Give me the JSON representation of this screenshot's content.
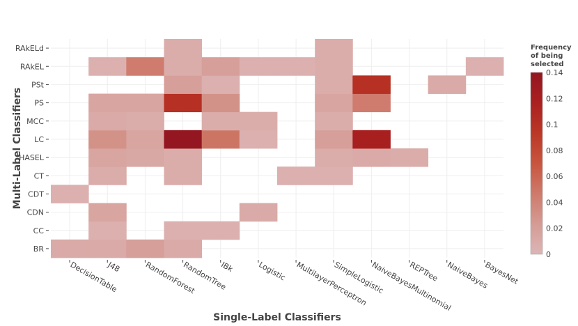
{
  "chart_data": {
    "type": "heatmap",
    "x_categories": [
      "DecisionTable",
      "J48",
      "RandomForest",
      "RandomTree",
      "IBk",
      "Logistic",
      "MultilayerPerceptron",
      "SimpleLogistic",
      "NaiveBayesMultinomial",
      "REPTree",
      "NaiveBayes",
      "BayesNet"
    ],
    "y_categories": [
      "BR",
      "CC",
      "CDN",
      "CDT",
      "CT",
      "HASEL",
      "LC",
      "MCC",
      "PS",
      "PSt",
      "RAkEL",
      "RAkELd"
    ],
    "values": [
      [
        0.01,
        0.01,
        0.02,
        0.01,
        null,
        null,
        null,
        null,
        null,
        null,
        null,
        null
      ],
      [
        null,
        0.005,
        null,
        0.005,
        0.005,
        null,
        null,
        null,
        null,
        null,
        null,
        null
      ],
      [
        null,
        0.015,
        null,
        null,
        null,
        0.01,
        null,
        null,
        null,
        null,
        null,
        null
      ],
      [
        0.005,
        null,
        null,
        null,
        null,
        null,
        null,
        null,
        null,
        null,
        null,
        null
      ],
      [
        null,
        0.008,
        null,
        0.008,
        null,
        null,
        0.005,
        0.005,
        null,
        null,
        null,
        null
      ],
      [
        null,
        0.015,
        0.012,
        0.008,
        null,
        null,
        null,
        0.008,
        0.01,
        0.008,
        null,
        null
      ],
      [
        null,
        0.03,
        0.015,
        0.14,
        0.05,
        0.005,
        null,
        0.02,
        0.12,
        null,
        null,
        null
      ],
      [
        null,
        0.01,
        0.008,
        null,
        0.008,
        0.008,
        null,
        0.008,
        null,
        null,
        null,
        null
      ],
      [
        null,
        0.015,
        0.015,
        0.1,
        0.03,
        null,
        null,
        0.015,
        0.045,
        null,
        null,
        null
      ],
      [
        null,
        null,
        null,
        0.02,
        0.005,
        null,
        null,
        0.008,
        0.1,
        null,
        0.01,
        null
      ],
      [
        null,
        0.005,
        0.045,
        0.008,
        0.02,
        0.005,
        0.005,
        0.008,
        null,
        null,
        null,
        0.005
      ],
      [
        null,
        null,
        null,
        0.008,
        null,
        null,
        null,
        0.008,
        null,
        null,
        null,
        null
      ]
    ],
    "xlabel": "Single-Label Classifiers",
    "ylabel": "Multi-Label Classifiers",
    "zrange": [
      0,
      0.14
    ],
    "colorbar": {
      "title": [
        "Frequency",
        "of being",
        "selected"
      ],
      "tick_labels": [
        "0",
        "0.02",
        "0.04",
        "0.06",
        "0.08",
        "0.1",
        "0.12",
        "0.14"
      ],
      "tick_values": [
        0,
        0.02,
        0.04,
        0.06,
        0.08,
        0.1,
        0.12,
        0.14
      ]
    },
    "colorscale": [
      "#dcb6b6",
      "#d59b94",
      "#ce7a6b",
      "#c8553f",
      "#bb3726",
      "#ab2020",
      "#931620"
    ],
    "grid": true
  }
}
